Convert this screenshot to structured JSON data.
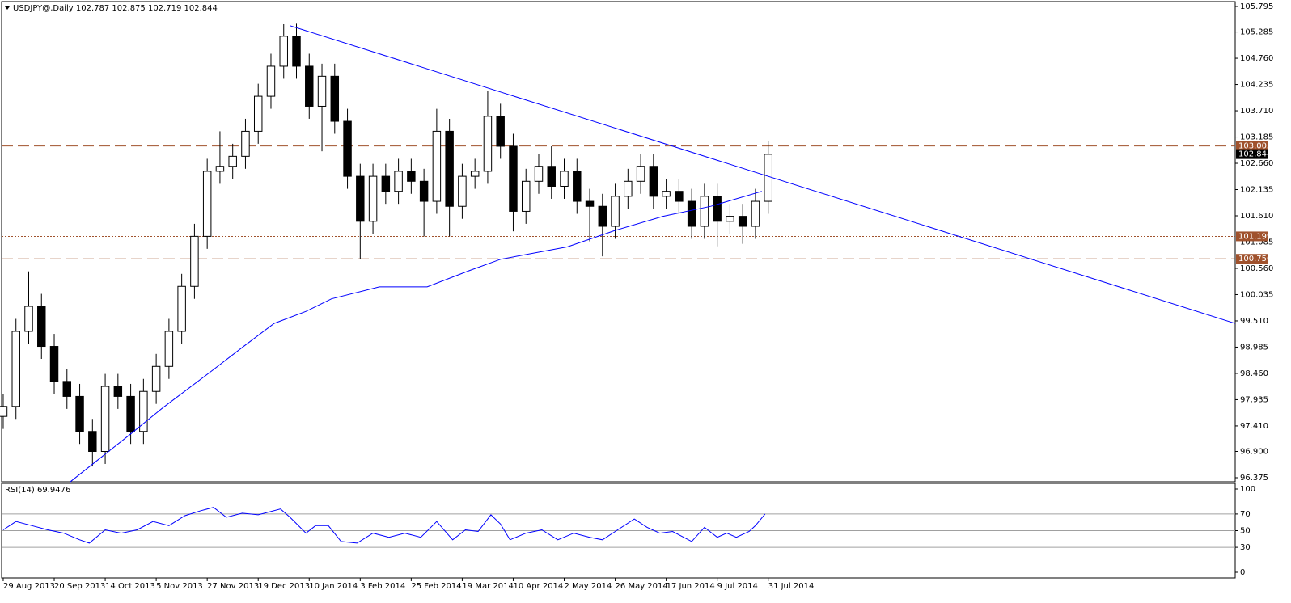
{
  "chart_data": [
    {
      "type": "candlestick",
      "title": "USDJPY@,Daily  102.787 102.875 102.719 102.844",
      "xlim": [
        -0.5,
        386.5
      ],
      "xticks": [
        {
          "value": 0,
          "label": "29 Aug 2013"
        },
        {
          "value": 16,
          "label": "20 Sep 2013"
        },
        {
          "value": 32,
          "label": "14 Oct 2013"
        },
        {
          "value": 48,
          "label": "5 Nov 2013"
        },
        {
          "value": 64,
          "label": "27 Nov 2013"
        },
        {
          "value": 80,
          "label": "19 Dec 2013"
        },
        {
          "value": 96,
          "label": "10 Jan 2014"
        },
        {
          "value": 112,
          "label": "3 Feb 2014"
        },
        {
          "value": 128,
          "label": "25 Feb 2014"
        },
        {
          "value": 144,
          "label": "19 Mar 2014"
        },
        {
          "value": 160,
          "label": "10 Apr 2014"
        },
        {
          "value": 176,
          "label": "2 May 2014"
        },
        {
          "value": 192,
          "label": "26 May 2014"
        },
        {
          "value": 208,
          "label": "17 Jun 2014"
        },
        {
          "value": 224,
          "label": "9 Jul 2014"
        },
        {
          "value": 240,
          "label": "31 Jul 2014"
        }
      ],
      "ylim": [
        96.294,
        105.892
      ],
      "yticks": [
        105.795,
        105.285,
        {
          "value": 104.76,
          "label": "104.760"
        },
        104.235,
        {
          "value": 103.71,
          "label": "103.710"
        },
        103.185,
        {
          "value": 102.66,
          "label": "102.660"
        },
        102.135,
        {
          "value": 101.61,
          "label": "101.610"
        },
        101.085,
        {
          "value": 100.56,
          "label": "100.560"
        },
        100.035,
        {
          "value": 99.51,
          "label": "99.510"
        },
        98.985,
        {
          "value": 98.46,
          "label": "98.460"
        },
        97.935,
        {
          "value": 97.41,
          "label": "97.410"
        },
        {
          "value": 96.9,
          "label": "96.900"
        },
        96.375
      ],
      "x": [
        0,
        4,
        8,
        12,
        16,
        20,
        24,
        28,
        32,
        36,
        40,
        44,
        48,
        52,
        56,
        60,
        64,
        68,
        72,
        76,
        80,
        84,
        88,
        92,
        96,
        100,
        104,
        108,
        112,
        116,
        120,
        124,
        128,
        132,
        136,
        140,
        144,
        148,
        152,
        156,
        160,
        164,
        168,
        172,
        176,
        180,
        184,
        188,
        192,
        196,
        200,
        204,
        208,
        212,
        216,
        220,
        224,
        228,
        232,
        236,
        240
      ],
      "open": [
        97.6,
        97.8,
        99.3,
        99.8,
        99.0,
        98.3,
        98.0,
        97.3,
        96.9,
        98.2,
        98.0,
        97.3,
        98.1,
        98.6,
        99.3,
        100.2,
        101.2,
        102.5,
        102.6,
        102.8,
        103.3,
        104.0,
        104.6,
        105.2,
        104.6,
        103.8,
        104.4,
        103.5,
        102.4,
        101.5,
        102.4,
        102.1,
        102.5,
        102.3,
        101.9,
        103.3,
        101.8,
        102.4,
        102.5,
        103.6,
        103.0,
        101.7,
        102.3,
        102.6,
        102.2,
        102.5,
        101.9,
        101.8,
        101.4,
        102.0,
        102.3,
        102.6,
        102.0,
        102.1,
        101.9,
        101.4,
        102.0,
        101.5,
        101.6,
        101.4,
        101.9
      ],
      "high": [
        98.05,
        99.55,
        100.5,
        100.05,
        99.25,
        98.55,
        98.25,
        97.55,
        98.45,
        98.45,
        98.25,
        98.35,
        98.85,
        99.55,
        100.45,
        101.45,
        102.75,
        103.3,
        103.05,
        103.55,
        104.25,
        104.85,
        105.44,
        105.45,
        104.85,
        104.65,
        104.65,
        103.75,
        102.65,
        102.65,
        102.65,
        102.75,
        102.75,
        102.55,
        103.75,
        103.55,
        102.65,
        102.75,
        104.1,
        103.85,
        103.25,
        102.55,
        102.85,
        103.0,
        102.75,
        102.75,
        102.15,
        102.05,
        102.25,
        102.55,
        102.85,
        102.85,
        102.35,
        102.35,
        102.15,
        102.25,
        102.25,
        101.85,
        101.85,
        102.15,
        103.1
      ],
      "low": [
        97.35,
        97.55,
        99.05,
        98.75,
        98.05,
        97.75,
        97.05,
        96.6,
        96.65,
        97.75,
        97.05,
        97.05,
        97.85,
        98.35,
        99.05,
        99.95,
        100.95,
        102.25,
        102.35,
        102.55,
        103.05,
        103.75,
        104.35,
        104.35,
        103.55,
        102.9,
        103.25,
        102.15,
        100.75,
        101.25,
        101.85,
        101.85,
        102.05,
        101.2,
        101.65,
        101.2,
        101.55,
        102.15,
        102.25,
        102.75,
        101.3,
        101.45,
        102.05,
        101.95,
        101.95,
        101.65,
        101.1,
        100.8,
        101.15,
        101.75,
        102.05,
        101.75,
        101.75,
        101.65,
        101.15,
        101.15,
        101.0,
        101.25,
        101.05,
        101.15,
        101.65
      ],
      "close": [
        97.8,
        99.3,
        99.8,
        99.0,
        98.3,
        98.0,
        97.3,
        96.9,
        98.2,
        98.0,
        97.3,
        98.1,
        98.6,
        99.3,
        100.2,
        101.2,
        102.5,
        102.6,
        102.8,
        103.3,
        104.0,
        104.6,
        105.2,
        104.6,
        103.8,
        104.4,
        103.5,
        102.4,
        101.5,
        102.4,
        102.1,
        102.5,
        102.3,
        101.9,
        103.3,
        101.8,
        102.4,
        102.5,
        103.6,
        103.0,
        101.7,
        102.3,
        102.6,
        102.2,
        102.5,
        101.9,
        101.8,
        101.4,
        102.0,
        102.3,
        102.6,
        102.0,
        102.1,
        101.9,
        101.4,
        102.0,
        101.5,
        101.6,
        101.4,
        101.9,
        102.84
      ],
      "up_color": "#ffffff",
      "down_color": "#000000",
      "edge_color": "#000000",
      "overlays": [
        {
          "color": "#0000ff",
          "x": [
            21,
            40,
            50,
            65,
            75,
            85,
            95,
            103,
            118,
            133,
            146,
            156,
            177,
            192,
            207,
            222,
            238
          ],
          "values": [
            96.29,
            97.25,
            97.77,
            98.49,
            98.98,
            99.46,
            99.7,
            99.95,
            100.19,
            100.19,
            100.51,
            100.74,
            100.99,
            101.32,
            101.6,
            101.8,
            102.1
          ]
        },
        {
          "color": "#0000ff",
          "x": [
            90,
            386.5
          ],
          "values": [
            105.41,
            99.46
          ]
        }
      ],
      "levels": [
        {
          "value": 103.005,
          "label": "103.005",
          "style": "dashed"
        },
        {
          "value": 101.199,
          "label": "101.199",
          "style": "dotted"
        },
        {
          "value": 100.75,
          "label": "100.750",
          "style": "dashed"
        }
      ],
      "level_color": "#a0522d",
      "last_price": 102.844
    },
    {
      "type": "line",
      "title": "RSI(14) 69.9476",
      "xlim": [
        -0.5,
        386.5
      ],
      "ylim": [
        -6.8,
        106.8
      ],
      "yticks": [
        100,
        70,
        50,
        30,
        0
      ],
      "levels": [
        70,
        50,
        30
      ],
      "color": "#0000ff",
      "x": [
        0,
        4,
        9,
        14,
        19,
        24,
        27,
        32,
        37,
        42,
        47,
        52,
        57,
        62,
        66,
        70,
        75,
        80,
        87,
        90,
        95,
        98,
        102,
        106,
        111,
        116,
        121,
        126,
        131,
        136,
        141,
        145,
        149,
        153,
        156,
        159,
        164,
        169,
        174,
        179,
        184,
        188,
        192,
        198,
        202,
        206,
        210,
        216,
        220,
        224,
        227,
        230,
        234,
        236,
        239
      ],
      "values": [
        51,
        61,
        56,
        51,
        47,
        39,
        35,
        51,
        47,
        51,
        61,
        56,
        68,
        74,
        78,
        66,
        71,
        69,
        76,
        66,
        47,
        56,
        56,
        37,
        35,
        47,
        42,
        47,
        42,
        61,
        39,
        51,
        49,
        69,
        58,
        39,
        47,
        51,
        39,
        47,
        42,
        39,
        49,
        64,
        54,
        47,
        49,
        37,
        54,
        42,
        47,
        42,
        49,
        56,
        70
      ]
    }
  ]
}
